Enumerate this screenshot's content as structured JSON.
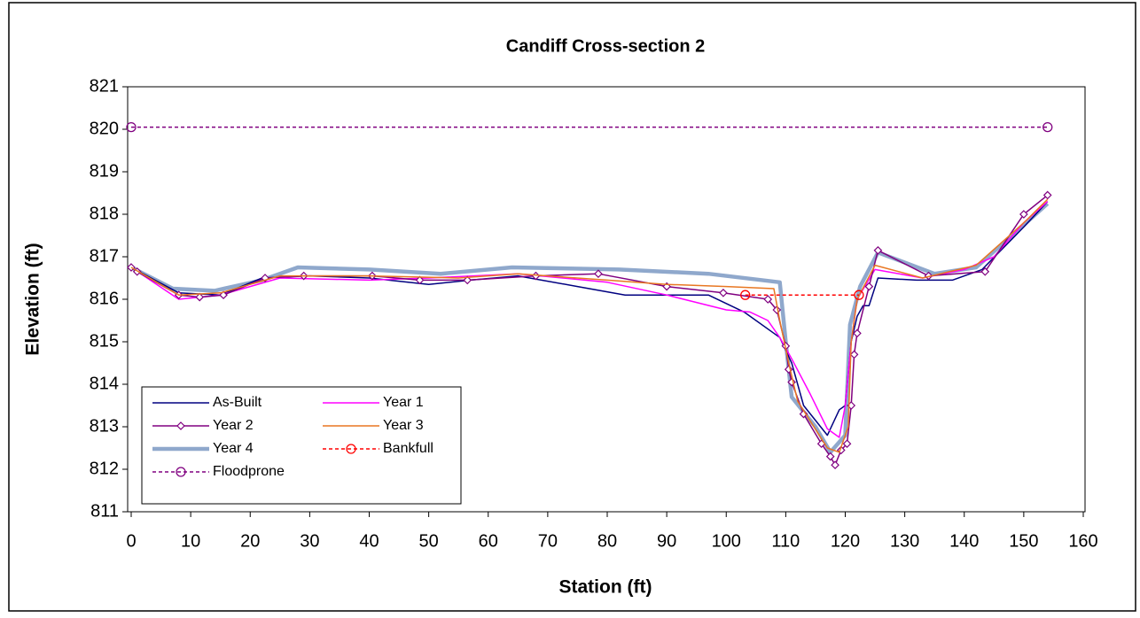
{
  "chart_data": {
    "type": "line",
    "title": "Candiff Cross-section 2",
    "x_label": "Station (ft)",
    "y_label": "Elevation (ft)",
    "xlim": [
      0,
      160
    ],
    "ylim": [
      811,
      821
    ],
    "xticks": [
      0,
      10,
      20,
      30,
      40,
      50,
      60,
      70,
      80,
      90,
      100,
      110,
      120,
      130,
      140,
      150,
      160
    ],
    "yticks": [
      811,
      812,
      813,
      814,
      815,
      816,
      817,
      818,
      819,
      820,
      821
    ],
    "grid": false,
    "legend": "lower left",
    "series": [
      {
        "name": "As-Built",
        "color": "#000080",
        "line_width": 1.5,
        "dashed": false,
        "marker": "none",
        "x": [
          0,
          8,
          15,
          22,
          30,
          40,
          50,
          57,
          65,
          75,
          83,
          90,
          97,
          103,
          109,
          111,
          113,
          117,
          119,
          120,
          121,
          122,
          123,
          124,
          125.5,
          132,
          138,
          143,
          150,
          154
        ],
        "values": [
          816.75,
          816.15,
          816.1,
          816.5,
          816.55,
          816.5,
          816.35,
          816.45,
          816.55,
          816.3,
          816.1,
          816.1,
          816.1,
          815.7,
          815.1,
          814.5,
          813.5,
          812.8,
          813.4,
          813.5,
          815,
          815.6,
          815.85,
          815.85,
          816.5,
          816.45,
          816.45,
          816.7,
          817.7,
          818.3
        ]
      },
      {
        "name": "Year 1",
        "color": "#ff00ff",
        "line_width": 1.5,
        "dashed": false,
        "marker": "none",
        "x": [
          0,
          8,
          15,
          25,
          40,
          50,
          65,
          80,
          90,
          100,
          104,
          107,
          109,
          111,
          114,
          117,
          119,
          120,
          121,
          122,
          125,
          133,
          140,
          145,
          150,
          154
        ],
        "values": [
          816.75,
          816.0,
          816.1,
          816.5,
          816.45,
          816.5,
          816.6,
          816.4,
          816.1,
          815.75,
          815.7,
          815.5,
          815.1,
          814.6,
          813.8,
          812.95,
          812.75,
          813.5,
          815,
          816,
          816.7,
          816.5,
          816.7,
          817,
          817.8,
          818.3
        ]
      },
      {
        "name": "Year 2",
        "color": "#800080",
        "line_width": 1.5,
        "dashed": false,
        "marker": "diamond",
        "x": [
          0,
          1,
          8,
          11.5,
          15.5,
          22.5,
          29,
          40.5,
          48.5,
          56.5,
          68,
          78.5,
          90,
          99.5,
          107,
          108.5,
          110,
          110.5,
          111,
          113,
          116,
          117.5,
          118.3,
          119.3,
          120.3,
          121,
          121.5,
          122,
          124,
          125.5,
          134,
          143.5,
          150,
          154
        ],
        "values": [
          816.75,
          816.65,
          816.1,
          816.05,
          816.1,
          816.5,
          816.55,
          816.55,
          816.45,
          816.45,
          816.55,
          816.6,
          816.3,
          816.15,
          816.0,
          815.75,
          814.9,
          814.35,
          814.05,
          813.3,
          812.6,
          812.3,
          812.1,
          812.45,
          812.6,
          813.5,
          814.7,
          815.2,
          816.3,
          817.15,
          816.55,
          816.65,
          818,
          818.45
        ]
      },
      {
        "name": "Year 3",
        "color": "#e87722",
        "line_width": 1.5,
        "dashed": false,
        "marker": "none",
        "x": [
          0,
          8,
          15,
          25,
          40,
          55,
          65,
          80,
          90,
          100,
          108,
          109,
          110.5,
          112,
          117,
          119,
          120.5,
          121,
          122,
          125,
          133,
          142,
          150,
          154
        ],
        "values": [
          816.75,
          816.1,
          816.15,
          816.55,
          816.55,
          816.5,
          816.6,
          816.45,
          816.35,
          816.3,
          816.25,
          815.5,
          814.5,
          813.6,
          812.5,
          812.4,
          813,
          815,
          816,
          816.8,
          816.5,
          816.8,
          817.8,
          818.35
        ]
      },
      {
        "name": "Year 4",
        "color": "#8fa8cc",
        "line_width": 4.5,
        "dashed": false,
        "marker": "none",
        "x": [
          0,
          7,
          14,
          22,
          28,
          40,
          52,
          64,
          82,
          97,
          109,
          110,
          111,
          115,
          117.5,
          120,
          120.8,
          122.5,
          125.5,
          135,
          142,
          148,
          154
        ],
        "values": [
          816.75,
          816.25,
          816.2,
          816.45,
          816.75,
          816.7,
          816.6,
          816.75,
          816.7,
          816.6,
          816.4,
          815,
          813.7,
          813,
          812.4,
          812.8,
          815.4,
          816.3,
          817.1,
          816.6,
          816.75,
          817.5,
          818.25
        ]
      },
      {
        "name": "Bankfull",
        "color": "#ff0000",
        "line_width": 1.5,
        "dashed": true,
        "marker": "circle",
        "x": [
          103.2,
          122.3
        ],
        "values": [
          816.1,
          816.1
        ]
      },
      {
        "name": "Floodprone",
        "color": "#800080",
        "line_width": 1.5,
        "dashed": true,
        "marker": "circle",
        "x": [
          0,
          154
        ],
        "values": [
          820.05,
          820.05
        ]
      }
    ]
  }
}
